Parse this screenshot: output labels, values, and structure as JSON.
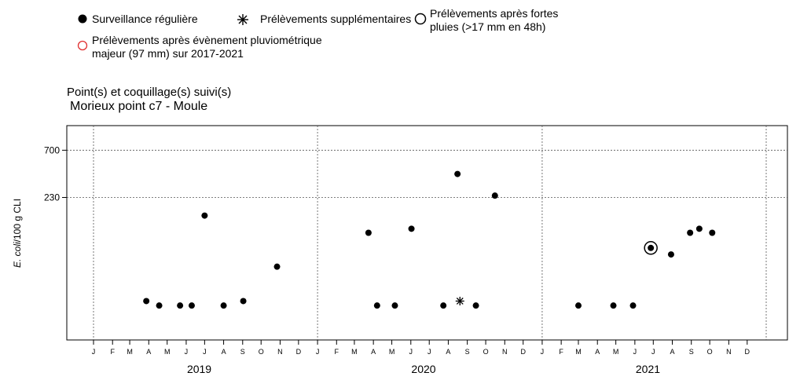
{
  "legend": {
    "items": [
      {
        "marker": "filled-circle",
        "label": "Surveillance régulière"
      },
      {
        "marker": "asterisk",
        "label": "Prélèvements supplémentaires"
      },
      {
        "marker": "open-circle",
        "label_lines": [
          "Prélèvements après fortes",
          "pluies (>17 mm en 48h)"
        ]
      },
      {
        "marker": "red-circle",
        "label_lines": [
          "Prélèvements après évènement pluviométrique",
          "majeur (97 mm) sur 2017-2021"
        ]
      }
    ],
    "red_color": "#e03030"
  },
  "subtitle": {
    "line1": "Point(s) et coquillage(s) suivi(s)",
    "line2": "Morieux point c7 - Moule"
  },
  "chart_data": {
    "type": "scatter",
    "ylabel_italic": "E. coli",
    "ylabel_rest": "/100 g CLI",
    "y_scale": "log",
    "y_ticks": [
      700,
      230
    ],
    "y_lim": [
      8,
      1250
    ],
    "x_start": "2019-01-01",
    "x_end": "2022-01-01",
    "years": [
      "2019",
      "2020",
      "2021"
    ],
    "month_labels": [
      "J",
      "F",
      "M",
      "A",
      "M",
      "J",
      "J",
      "A",
      "S",
      "O",
      "N",
      "D"
    ],
    "grid": "dotted at year boundaries and y ticks",
    "regular": [
      {
        "date": "2019-03-28",
        "value": 20
      },
      {
        "date": "2019-04-18",
        "value": 18
      },
      {
        "date": "2019-05-22",
        "value": 18
      },
      {
        "date": "2019-06-10",
        "value": 18
      },
      {
        "date": "2019-07-01",
        "value": 150
      },
      {
        "date": "2019-08-01",
        "value": 18
      },
      {
        "date": "2019-09-02",
        "value": 20
      },
      {
        "date": "2019-10-27",
        "value": 45
      },
      {
        "date": "2020-03-24",
        "value": 100
      },
      {
        "date": "2020-04-07",
        "value": 18
      },
      {
        "date": "2020-05-06",
        "value": 18
      },
      {
        "date": "2020-06-02",
        "value": 110
      },
      {
        "date": "2020-07-24",
        "value": 18
      },
      {
        "date": "2020-08-16",
        "value": 400
      },
      {
        "date": "2020-09-15",
        "value": 18
      },
      {
        "date": "2020-10-16",
        "value": 240
      },
      {
        "date": "2021-03-01",
        "value": 18
      },
      {
        "date": "2021-04-27",
        "value": 18
      },
      {
        "date": "2021-05-29",
        "value": 18
      },
      {
        "date": "2021-06-27",
        "value": 70
      },
      {
        "date": "2021-07-30",
        "value": 60
      },
      {
        "date": "2021-08-30",
        "value": 100
      },
      {
        "date": "2021-09-14",
        "value": 110
      },
      {
        "date": "2021-10-05",
        "value": 100
      }
    ],
    "supplementary": [
      {
        "date": "2020-08-20",
        "value": 20
      }
    ],
    "after_rain": [
      {
        "date": "2021-06-27",
        "value": 70
      }
    ],
    "after_major_rain": []
  }
}
